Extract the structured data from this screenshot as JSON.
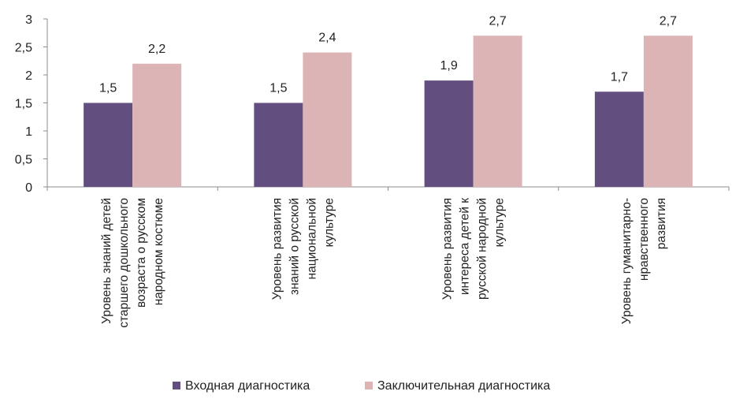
{
  "chart_data": {
    "type": "bar",
    "categories": [
      [
        "Уровень знаний детей",
        "старшего дошкольного",
        "возраста о русском",
        "народном костюме"
      ],
      [
        "Уровень  развития",
        "знаний о русской",
        "национальной",
        "культуре"
      ],
      [
        "Уровень развития",
        "интереса детей к",
        "русской народной",
        "культуре"
      ],
      [
        "Уровень гуманитарно-",
        "нравственного",
        "развития"
      ]
    ],
    "series": [
      {
        "name": "Входная диагностика",
        "values": [
          1.5,
          1.5,
          1.9,
          1.7
        ],
        "value_labels": [
          "1,5",
          "1,5",
          "1,9",
          "1,7"
        ],
        "color": "#634e80"
      },
      {
        "name": "Заключительная диагностика",
        "values": [
          2.2,
          2.4,
          2.7,
          2.7
        ],
        "value_labels": [
          "2,2",
          "2,4",
          "2,7",
          "2,7"
        ],
        "color": "#dcb4b6"
      }
    ],
    "ylim": [
      0,
      3
    ],
    "yticks": [
      0,
      0.5,
      1,
      1.5,
      2,
      2.5,
      3
    ],
    "ytick_labels": [
      "0",
      "0,5",
      "1",
      "1,5",
      "2",
      "2,5",
      "3"
    ],
    "grid": false,
    "legend_position": "bottom"
  }
}
